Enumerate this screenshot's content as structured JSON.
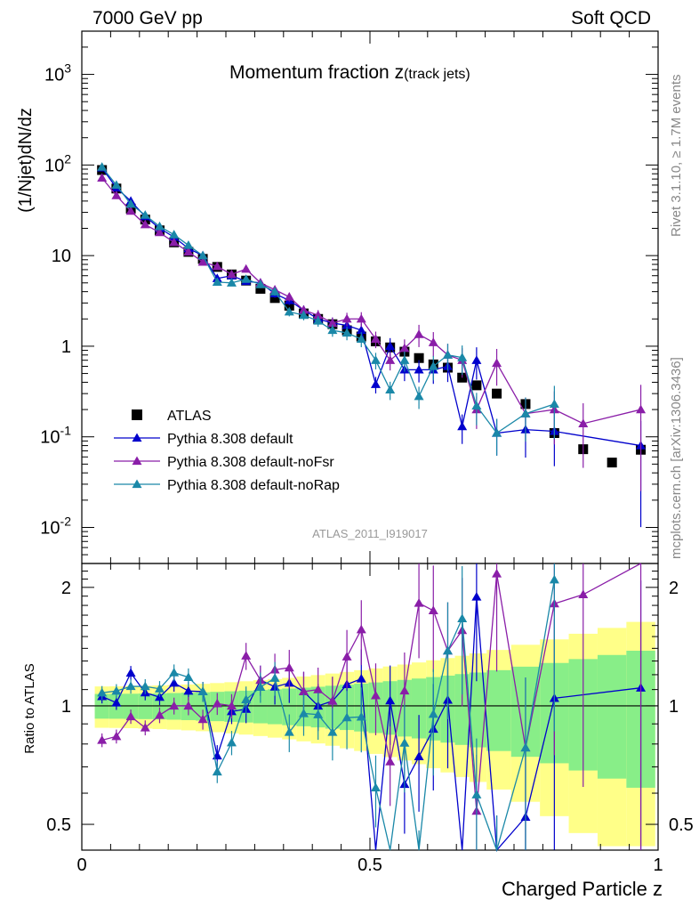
{
  "header": {
    "left": "7000 GeV pp",
    "right": "Soft QCD",
    "rivet": "Rivet 3.1.10, ≥ 1.7M events",
    "mcplots": "mcplots.cern.ch [arXiv:1306.3436]"
  },
  "chart_data": {
    "type": "scatter",
    "title": "Momentum fraction ",
    "title_z": "z",
    "title_sub": "(track jets)",
    "analysis_id": "ATLAS_2011_I919017",
    "xlabel": "Charged Particle z",
    "ylabel": "(1/Njet)dN/dz",
    "ratio_ylabel": "Ratio to ATLAS",
    "xlim": [
      0,
      1
    ],
    "ylim": [
      0.004,
      3000
    ],
    "yscale": "log",
    "ratio_ylim": [
      0.43,
      2.3
    ],
    "x_ticks": [
      "0",
      "0.5",
      "1"
    ],
    "y_ticks": [
      {
        "label": "10",
        "exp": "-2",
        "value": 0.01
      },
      {
        "label": "10",
        "exp": "-1",
        "value": 0.1
      },
      {
        "label": "1",
        "exp": "",
        "value": 1
      },
      {
        "label": "10",
        "exp": "",
        "value": 10
      },
      {
        "label": "10",
        "exp": "2",
        "value": 100
      },
      {
        "label": "10",
        "exp": "3",
        "value": 1000
      }
    ],
    "ratio_ticks": [
      "0.5",
      "1",
      "2"
    ],
    "legend_position": "bottom-left",
    "x": [
      0.035,
      0.06,
      0.085,
      0.11,
      0.135,
      0.16,
      0.185,
      0.21,
      0.235,
      0.26,
      0.285,
      0.31,
      0.335,
      0.36,
      0.385,
      0.41,
      0.435,
      0.46,
      0.485,
      0.51,
      0.535,
      0.56,
      0.585,
      0.61,
      0.635,
      0.66,
      0.685,
      0.72,
      0.77,
      0.82,
      0.87,
      0.92,
      0.97
    ],
    "series": [
      {
        "name": "ATLAS",
        "marker": "square",
        "color": "#000000",
        "values": [
          88,
          55,
          33,
          25,
          19,
          14,
          11,
          9.2,
          7.5,
          6.2,
          5.3,
          4.3,
          3.4,
          2.8,
          2.3,
          2.0,
          1.75,
          1.5,
          1.28,
          1.13,
          0.97,
          0.87,
          0.74,
          0.63,
          0.58,
          0.45,
          0.37,
          0.3,
          0.23,
          0.11,
          0.073,
          0.052,
          0.072
        ]
      },
      {
        "name": "Pythia 8.308 default",
        "marker": "triangle",
        "color": "#0000cc",
        "values": [
          93,
          56,
          40,
          27,
          20,
          16,
          12,
          10,
          5.6,
          6.0,
          5.2,
          5.0,
          3.8,
          3.2,
          2.5,
          2.0,
          1.8,
          1.7,
          1.5,
          0.38,
          1.0,
          0.55,
          0.55,
          0.55,
          0.6,
          0.13,
          0.7,
          0.11,
          0.12,
          0.115,
          null,
          null,
          0.08
        ]
      },
      {
        "name": "Pythia 8.308 default-noFsr",
        "marker": "triangle",
        "color": "#8a1ea8",
        "values": [
          72,
          46,
          31,
          22,
          18,
          14,
          11,
          8.5,
          7.6,
          6.2,
          7.1,
          5.0,
          4.2,
          3.5,
          2.5,
          2.2,
          1.8,
          2.0,
          2.0,
          1.2,
          0.7,
          0.95,
          1.35,
          1.1,
          0.8,
          0.7,
          0.2,
          0.65,
          0.18,
          0.2,
          0.14,
          null,
          0.2
        ]
      },
      {
        "name": "Pythia 8.308 default-noRap",
        "marker": "triangle",
        "color": "#1a88a8",
        "values": [
          95,
          60,
          37,
          28,
          21,
          17,
          13,
          10,
          5.1,
          5.0,
          5.5,
          4.8,
          4.0,
          2.4,
          2.2,
          1.9,
          1.5,
          1.4,
          1.2,
          0.7,
          0.33,
          0.7,
          0.28,
          0.6,
          0.8,
          0.75,
          0.22,
          0.11,
          0.18,
          0.23,
          null,
          null,
          null
        ]
      }
    ]
  }
}
